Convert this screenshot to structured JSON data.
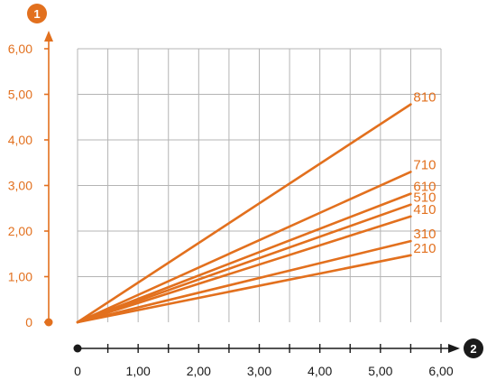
{
  "chart_data": {
    "type": "line",
    "y_axis_badge": "1",
    "x_axis_badge": "2",
    "xlim": [
      0,
      6
    ],
    "ylim": [
      0,
      6
    ],
    "x_tick_labels": [
      "0",
      "1,00",
      "2,00",
      "3,00",
      "4,00",
      "5,00",
      "6,00"
    ],
    "y_tick_labels": [
      "0",
      "1,00",
      "2,00",
      "3,00",
      "4,00",
      "5,00",
      "6,00"
    ],
    "grid": true,
    "series": [
      {
        "name": "810",
        "x": [
          0,
          5.5
        ],
        "y": [
          0,
          4.78
        ]
      },
      {
        "name": "710",
        "x": [
          0,
          5.5
        ],
        "y": [
          0,
          3.3
        ]
      },
      {
        "name": "610",
        "x": [
          0,
          5.5
        ],
        "y": [
          0,
          2.82
        ]
      },
      {
        "name": "510",
        "x": [
          0,
          5.5
        ],
        "y": [
          0,
          2.58
        ]
      },
      {
        "name": "410",
        "x": [
          0,
          5.5
        ],
        "y": [
          0,
          2.32
        ]
      },
      {
        "name": "310",
        "x": [
          0,
          5.5
        ],
        "y": [
          0,
          1.78
        ]
      },
      {
        "name": "210",
        "x": [
          0,
          5.5
        ],
        "y": [
          0,
          1.47
        ]
      }
    ],
    "colors": {
      "accent": "#e2701e",
      "axis": "#1a1a1a",
      "grid": "#b4b4b4"
    }
  }
}
